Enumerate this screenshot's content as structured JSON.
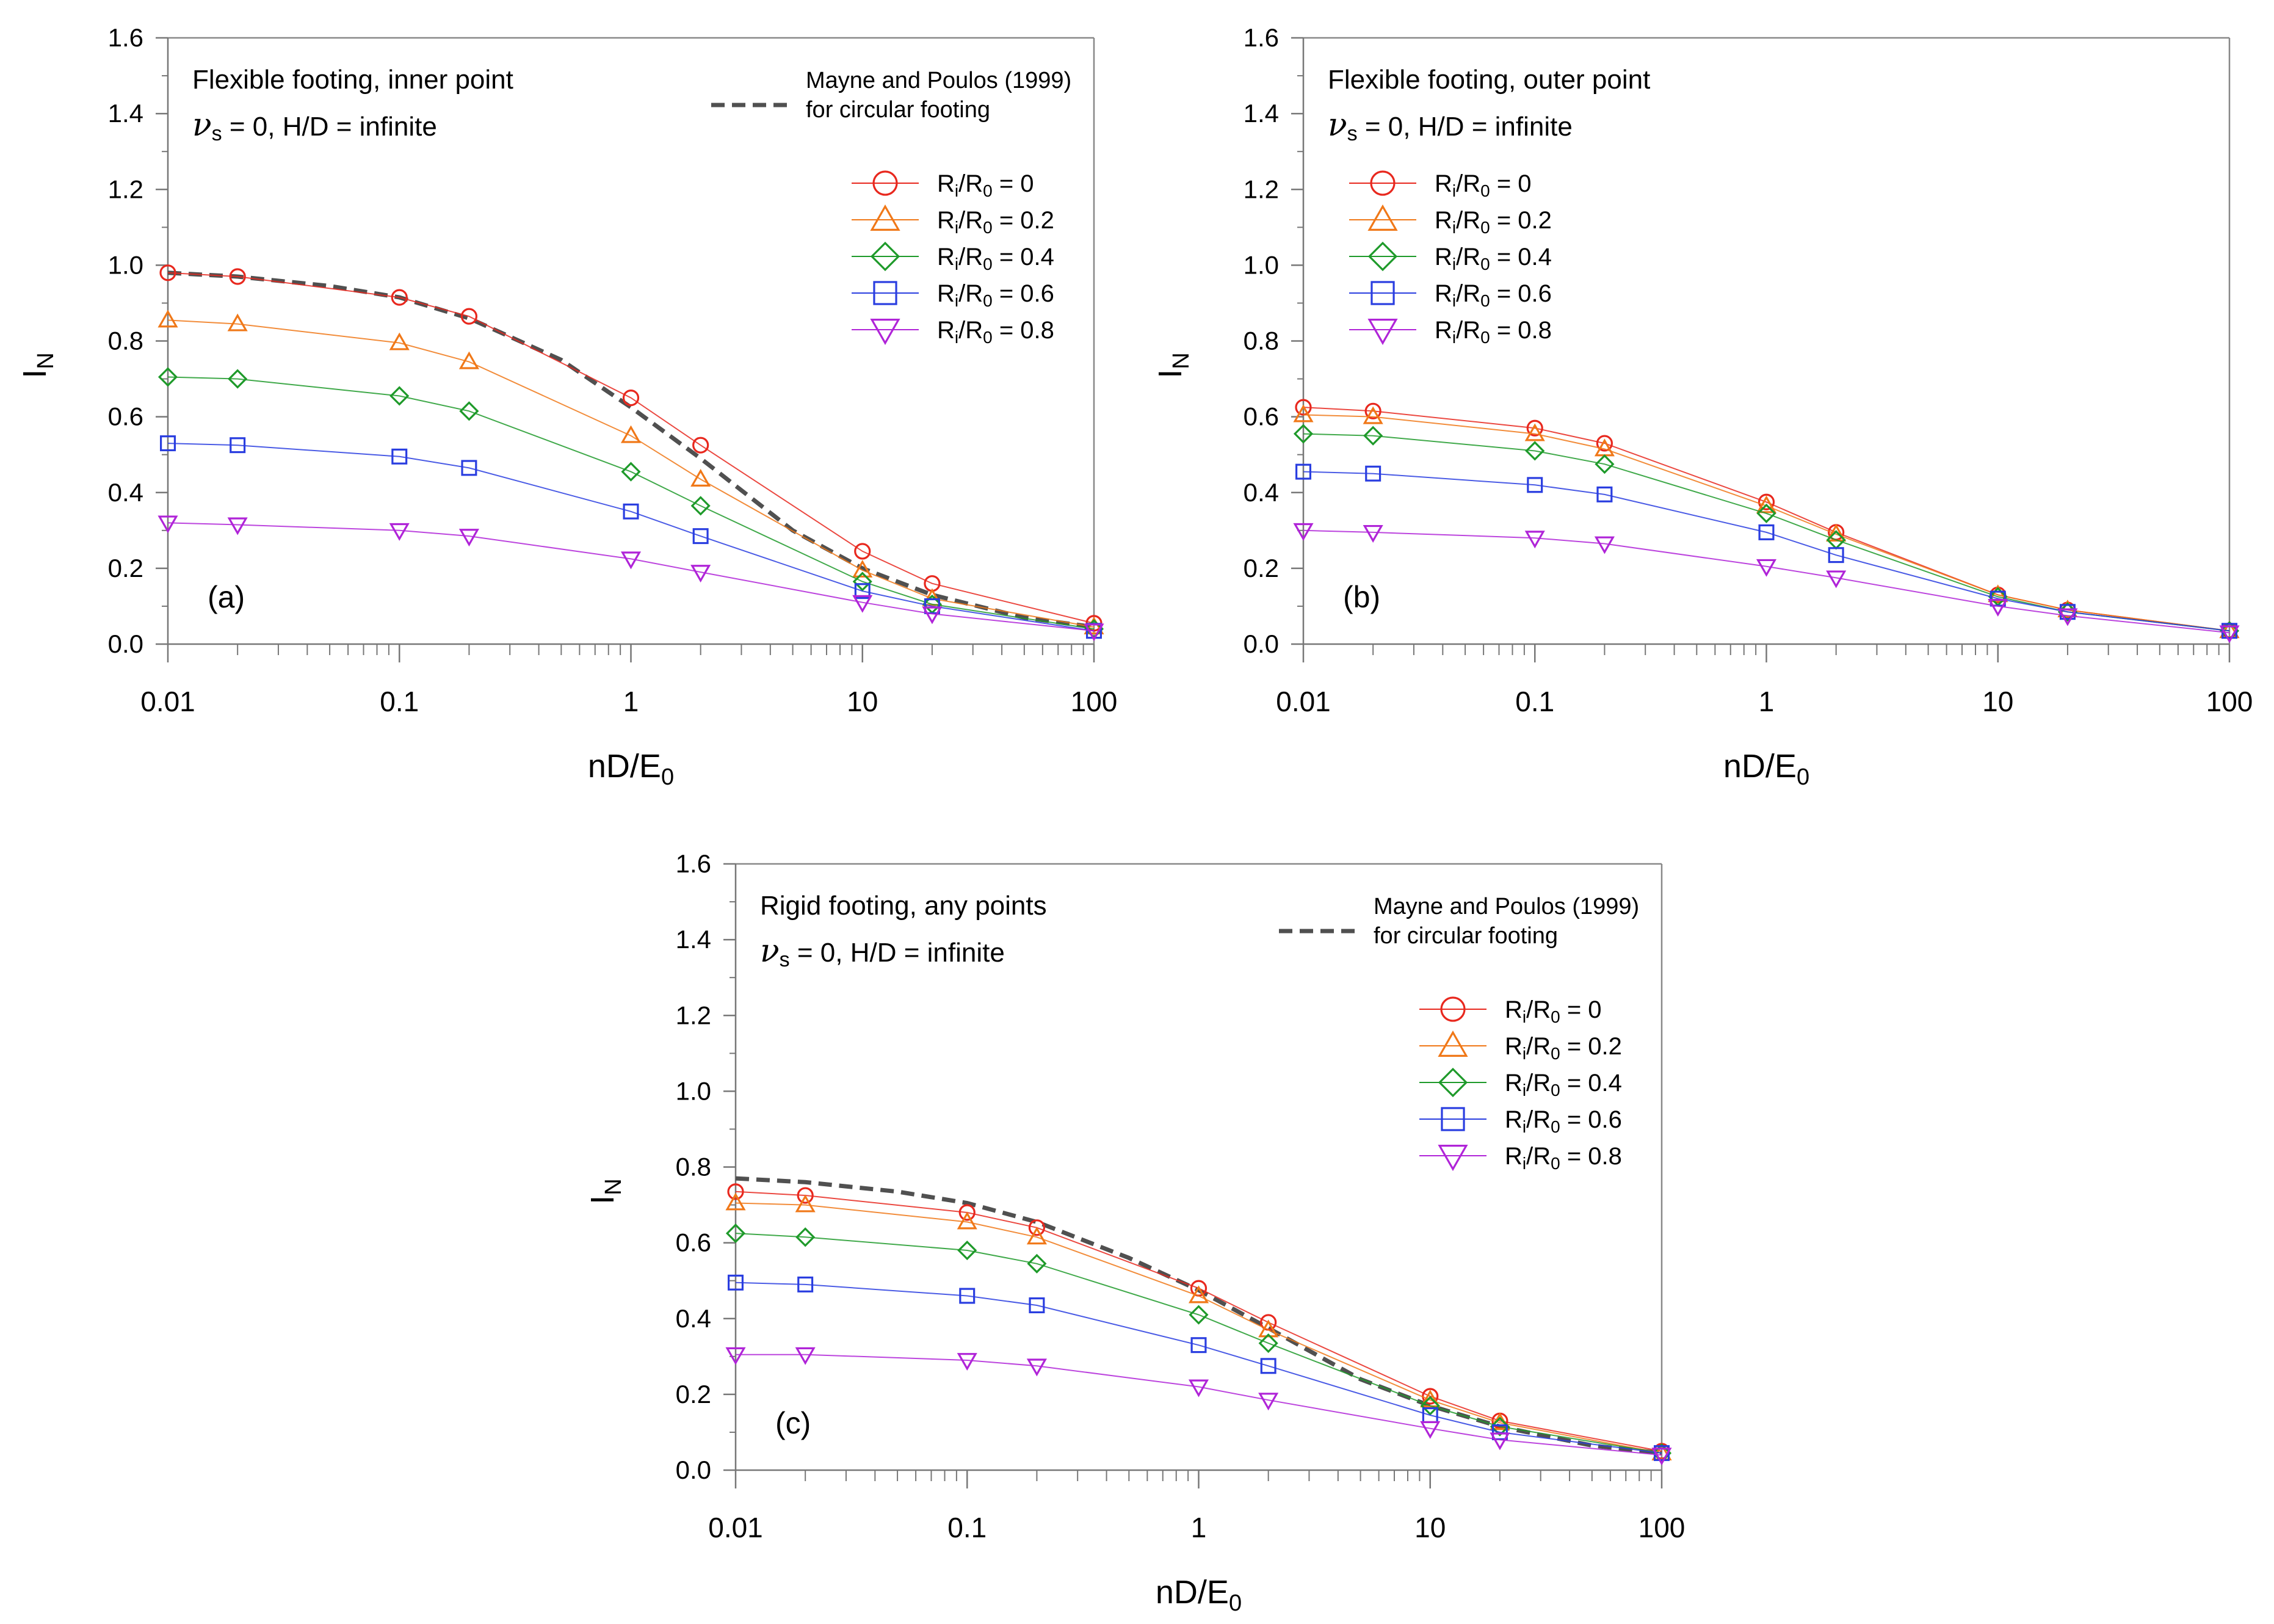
{
  "chart_data": [
    {
      "type": "line",
      "panel_label": "(a)",
      "title_line1": "Flexible footing, inner point",
      "title_nu": "ν",
      "title_nu_sub": "s",
      "title_line2_rest": " = 0, H/D = infinite",
      "xlabel": {
        "main": "nD/E",
        "sub": "0"
      },
      "ylabel": {
        "main": "I",
        "sub": "N"
      },
      "x_scale": "log",
      "xlim": [
        0.01,
        100
      ],
      "ylim": [
        0,
        1.6
      ],
      "x_ticks": [
        0.01,
        0.1,
        1,
        10,
        100
      ],
      "x_tick_labels": [
        "0.01",
        "0.1",
        "1",
        "10",
        "100"
      ],
      "y_ticks": [
        0,
        0.2,
        0.4,
        0.6,
        0.8,
        1.0,
        1.2,
        1.4,
        1.6
      ],
      "y_tick_labels": [
        "0.0",
        "0.2",
        "0.4",
        "0.6",
        "0.8",
        "1.0",
        "1.2",
        "1.4",
        "1.6"
      ],
      "reference": {
        "label_line1": "Mayne and Poulos (1999)",
        "label_line2": "for circular footing",
        "x": [
          0.01,
          0.02,
          0.05,
          0.1,
          0.2,
          0.5,
          1,
          2,
          5,
          10,
          20,
          50,
          100
        ],
        "y": [
          0.98,
          0.97,
          0.945,
          0.915,
          0.86,
          0.75,
          0.625,
          0.49,
          0.3,
          0.2,
          0.13,
          0.07,
          0.045
        ]
      },
      "x": [
        0.01,
        0.02,
        0.1,
        0.2,
        1,
        2,
        10,
        20,
        100
      ],
      "series": [
        {
          "name_main": "R",
          "name_sub1": "i",
          "name_mid": "/R",
          "name_sub2": "0",
          "name_tail": " = 0",
          "marker": "circle",
          "color": "#e8281e",
          "values": [
            0.98,
            0.97,
            0.915,
            0.865,
            0.65,
            0.525,
            0.245,
            0.16,
            0.055
          ]
        },
        {
          "name_main": "R",
          "name_sub1": "i",
          "name_mid": "/R",
          "name_sub2": "0",
          "name_tail": " = 0.2",
          "marker": "triangle-up",
          "color": "#f07818",
          "values": [
            0.855,
            0.845,
            0.795,
            0.745,
            0.55,
            0.435,
            0.195,
            0.12,
            0.045
          ]
        },
        {
          "name_main": "R",
          "name_sub1": "i",
          "name_mid": "/R",
          "name_sub2": "0",
          "name_tail": " = 0.4",
          "marker": "diamond",
          "color": "#1e9a2a",
          "values": [
            0.705,
            0.7,
            0.655,
            0.615,
            0.455,
            0.365,
            0.165,
            0.105,
            0.04
          ]
        },
        {
          "name_main": "R",
          "name_sub1": "i",
          "name_mid": "/R",
          "name_sub2": "0",
          "name_tail": " = 0.6",
          "marker": "square",
          "color": "#2a3ee0",
          "values": [
            0.53,
            0.525,
            0.495,
            0.465,
            0.35,
            0.285,
            0.14,
            0.1,
            0.035
          ]
        },
        {
          "name_main": "R",
          "name_sub1": "i",
          "name_mid": "/R",
          "name_sub2": "0",
          "name_tail": " = 0.8",
          "marker": "triangle-down",
          "color": "#b024d8",
          "values": [
            0.32,
            0.315,
            0.3,
            0.285,
            0.225,
            0.19,
            0.11,
            0.08,
            0.035
          ]
        }
      ]
    },
    {
      "type": "line",
      "panel_label": "(b)",
      "title_line1": "Flexible footing, outer point",
      "title_nu": "ν",
      "title_nu_sub": "s",
      "title_line2_rest": " = 0, H/D = infinite",
      "xlabel": {
        "main": "nD/E",
        "sub": "0"
      },
      "ylabel": {
        "main": "I",
        "sub": "N"
      },
      "x_scale": "log",
      "xlim": [
        0.01,
        100
      ],
      "ylim": [
        0,
        1.6
      ],
      "x_ticks": [
        0.01,
        0.1,
        1,
        10,
        100
      ],
      "x_tick_labels": [
        "0.01",
        "0.1",
        "1",
        "10",
        "100"
      ],
      "y_ticks": [
        0,
        0.2,
        0.4,
        0.6,
        0.8,
        1.0,
        1.2,
        1.4,
        1.6
      ],
      "y_tick_labels": [
        "0.0",
        "0.2",
        "0.4",
        "0.6",
        "0.8",
        "1.0",
        "1.2",
        "1.4",
        "1.6"
      ],
      "reference": null,
      "x": [
        0.01,
        0.02,
        0.1,
        0.2,
        1,
        2,
        10,
        20,
        100
      ],
      "series": [
        {
          "name_main": "R",
          "name_sub1": "i",
          "name_mid": "/R",
          "name_sub2": "0",
          "name_tail": " = 0",
          "marker": "circle",
          "color": "#e8281e",
          "values": [
            0.625,
            0.615,
            0.57,
            0.53,
            0.375,
            0.295,
            0.13,
            0.09,
            0.035
          ]
        },
        {
          "name_main": "R",
          "name_sub1": "i",
          "name_mid": "/R",
          "name_sub2": "0",
          "name_tail": " = 0.2",
          "marker": "triangle-up",
          "color": "#f07818",
          "values": [
            0.605,
            0.6,
            0.555,
            0.515,
            0.365,
            0.29,
            0.13,
            0.09,
            0.035
          ]
        },
        {
          "name_main": "R",
          "name_sub1": "i",
          "name_mid": "/R",
          "name_sub2": "0",
          "name_tail": " = 0.4",
          "marker": "diamond",
          "color": "#1e9a2a",
          "values": [
            0.555,
            0.55,
            0.51,
            0.475,
            0.345,
            0.275,
            0.125,
            0.085,
            0.035
          ]
        },
        {
          "name_main": "R",
          "name_sub1": "i",
          "name_mid": "/R",
          "name_sub2": "0",
          "name_tail": " = 0.6",
          "marker": "square",
          "color": "#2a3ee0",
          "values": [
            0.455,
            0.45,
            0.42,
            0.395,
            0.295,
            0.235,
            0.12,
            0.085,
            0.035
          ]
        },
        {
          "name_main": "R",
          "name_sub1": "i",
          "name_mid": "/R",
          "name_sub2": "0",
          "name_tail": " = 0.8",
          "marker": "triangle-down",
          "color": "#b024d8",
          "values": [
            0.3,
            0.295,
            0.28,
            0.265,
            0.205,
            0.175,
            0.1,
            0.075,
            0.03
          ]
        }
      ]
    },
    {
      "type": "line",
      "panel_label": "(c)",
      "title_line1": "Rigid footing, any points",
      "title_nu": "ν",
      "title_nu_sub": "s",
      "title_line2_rest": " = 0, H/D = infinite",
      "xlabel": {
        "main": "nD/E",
        "sub": "0"
      },
      "ylabel": {
        "main": "I",
        "sub": "N"
      },
      "x_scale": "log",
      "xlim": [
        0.01,
        100
      ],
      "ylim": [
        0,
        1.6
      ],
      "x_ticks": [
        0.01,
        0.1,
        1,
        10,
        100
      ],
      "x_tick_labels": [
        "0.01",
        "0.1",
        "1",
        "10",
        "100"
      ],
      "y_ticks": [
        0,
        0.2,
        0.4,
        0.6,
        0.8,
        1.0,
        1.2,
        1.4,
        1.6
      ],
      "y_tick_labels": [
        "0.0",
        "0.2",
        "0.4",
        "0.6",
        "0.8",
        "1.0",
        "1.2",
        "1.4",
        "1.6"
      ],
      "reference": {
        "label_line1": "Mayne and Poulos (1999)",
        "label_line2": "for circular footing",
        "x": [
          0.01,
          0.02,
          0.05,
          0.1,
          0.2,
          0.5,
          1,
          2,
          5,
          10,
          20,
          50,
          100
        ],
        "y": [
          0.77,
          0.76,
          0.735,
          0.705,
          0.655,
          0.56,
          0.475,
          0.375,
          0.24,
          0.17,
          0.115,
          0.065,
          0.045
        ]
      },
      "x": [
        0.01,
        0.02,
        0.1,
        0.2,
        1,
        2,
        10,
        20,
        100
      ],
      "series": [
        {
          "name_main": "R",
          "name_sub1": "i",
          "name_mid": "/R",
          "name_sub2": "0",
          "name_tail": " = 0",
          "marker": "circle",
          "color": "#e8281e",
          "values": [
            0.735,
            0.725,
            0.68,
            0.64,
            0.48,
            0.39,
            0.195,
            0.13,
            0.05
          ]
        },
        {
          "name_main": "R",
          "name_sub1": "i",
          "name_mid": "/R",
          "name_sub2": "0",
          "name_tail": " = 0.2",
          "marker": "triangle-up",
          "color": "#f07818",
          "values": [
            0.705,
            0.7,
            0.655,
            0.615,
            0.46,
            0.37,
            0.185,
            0.125,
            0.045
          ]
        },
        {
          "name_main": "R",
          "name_sub1": "i",
          "name_mid": "/R",
          "name_sub2": "0",
          "name_tail": " = 0.4",
          "marker": "diamond",
          "color": "#1e9a2a",
          "values": [
            0.625,
            0.615,
            0.58,
            0.545,
            0.41,
            0.335,
            0.17,
            0.115,
            0.045
          ]
        },
        {
          "name_main": "R",
          "name_sub1": "i",
          "name_mid": "/R",
          "name_sub2": "0",
          "name_tail": " = 0.6",
          "marker": "square",
          "color": "#2a3ee0",
          "values": [
            0.495,
            0.49,
            0.46,
            0.435,
            0.33,
            0.275,
            0.145,
            0.1,
            0.045
          ]
        },
        {
          "name_main": "R",
          "name_sub1": "i",
          "name_mid": "/R",
          "name_sub2": "0",
          "name_tail": " = 0.8",
          "marker": "triangle-down",
          "color": "#b024d8",
          "values": [
            0.305,
            0.305,
            0.29,
            0.275,
            0.22,
            0.185,
            0.11,
            0.08,
            0.04
          ]
        }
      ]
    }
  ]
}
